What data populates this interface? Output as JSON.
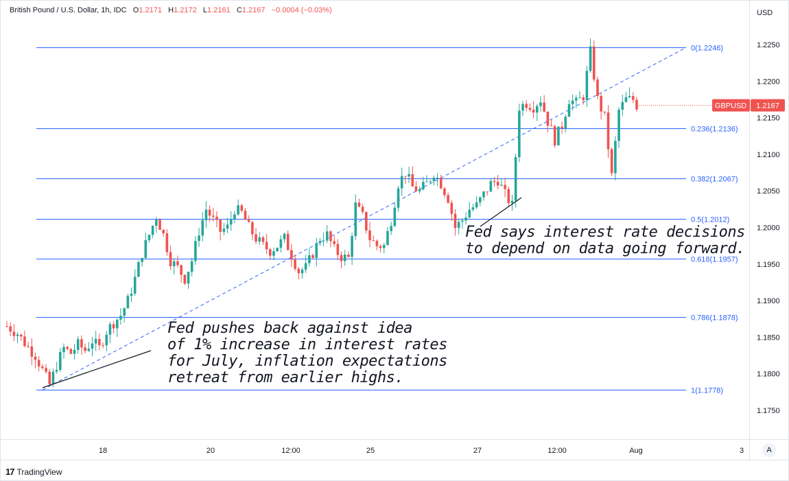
{
  "header": {
    "symbol": "British Pound / U.S. Dollar, 1h, IDC",
    "open_label": "O",
    "open": "1.2171",
    "high_label": "H",
    "high": "1.2172",
    "low_label": "L",
    "low": "1.2161",
    "close_label": "C",
    "close": "1.2167",
    "change": "−0.0004 (−0.03%)"
  },
  "axis": {
    "currency": "USD"
  },
  "last_price": {
    "ticker": "GBPUSD",
    "value": "1.2167"
  },
  "footer": {
    "brand": "TradingView",
    "scale_button": "A"
  },
  "colors": {
    "up": "#26a69a",
    "down": "#ef5350",
    "fib": "#2962ff",
    "fib_text": "#2962ff"
  },
  "annotations": [
    {
      "lines": [
        "Fed pushes back against idea",
        "of 1% increase in interest rates",
        "for July, inflation expectations",
        "retreat from earlier highs."
      ]
    },
    {
      "lines": [
        "Fed says interest rate decisions",
        "to depend on data going forward."
      ]
    }
  ],
  "chart_data": {
    "type": "candlestick",
    "title": "British Pound / U.S. Dollar, 1h, IDC",
    "ylim": [
      1.171,
      1.2305
    ],
    "y_ticks": [
      1.175,
      1.18,
      1.185,
      1.19,
      1.195,
      1.2,
      1.205,
      1.21,
      1.215,
      1.22,
      1.225
    ],
    "x_ticks": [
      "18",
      "20",
      "12:00",
      "25",
      "27",
      "12:00",
      "Aug",
      "3"
    ],
    "fibonacci": [
      {
        "label": "0(1.2246)",
        "level": 1.2246
      },
      {
        "label": "0.236(1.2136)",
        "level": 1.2136
      },
      {
        "label": "0.382(1.2067)",
        "level": 1.2067
      },
      {
        "label": "0.5(1.2012)",
        "level": 1.2012
      },
      {
        "label": "0.618(1.1957)",
        "level": 1.1957
      },
      {
        "label": "0.786(1.1878)",
        "level": 1.1878
      },
      {
        "label": "1(1.1778)",
        "level": 1.1778
      }
    ],
    "trend_line": {
      "from": 1.1778,
      "to": 1.2246
    },
    "price_path": [
      [
        0,
        1.1865
      ],
      [
        3,
        1.1855
      ],
      [
        5,
        1.1842
      ],
      [
        8,
        1.1825
      ],
      [
        10,
        1.1805
      ],
      [
        12,
        1.1785
      ],
      [
        14,
        1.1812
      ],
      [
        16,
        1.1835
      ],
      [
        18,
        1.1828
      ],
      [
        20,
        1.184
      ],
      [
        22,
        1.1832
      ],
      [
        24,
        1.1845
      ],
      [
        26,
        1.1835
      ],
      [
        28,
        1.1858
      ],
      [
        30,
        1.187
      ],
      [
        32,
        1.188
      ],
      [
        34,
        1.19
      ],
      [
        36,
        1.193
      ],
      [
        38,
        1.1965
      ],
      [
        40,
        1.199
      ],
      [
        42,
        1.2015
      ],
      [
        44,
        1.199
      ],
      [
        46,
        1.1955
      ],
      [
        48,
        1.1945
      ],
      [
        50,
        1.193
      ],
      [
        52,
        1.1955
      ],
      [
        54,
        1.1995
      ],
      [
        56,
        1.2025
      ],
      [
        58,
        1.201
      ],
      [
        60,
        1.1995
      ],
      [
        62,
        1.2
      ],
      [
        64,
        1.2025
      ],
      [
        66,
        1.202
      ],
      [
        68,
        1.2
      ],
      [
        70,
        1.1985
      ],
      [
        72,
        1.1975
      ],
      [
        74,
        1.1968
      ],
      [
        76,
        1.1975
      ],
      [
        78,
        1.1985
      ],
      [
        80,
        1.1962
      ],
      [
        82,
        1.194
      ],
      [
        84,
        1.1945
      ],
      [
        86,
        1.1965
      ],
      [
        88,
        1.1985
      ],
      [
        90,
        1.199
      ],
      [
        92,
        1.197
      ],
      [
        94,
        1.196
      ],
      [
        96,
        1.1958
      ],
      [
        98,
        1.203
      ],
      [
        100,
        1.2015
      ],
      [
        102,
        1.1985
      ],
      [
        104,
        1.1975
      ],
      [
        106,
        1.1975
      ],
      [
        108,
        1.201
      ],
      [
        110,
        1.206
      ],
      [
        112,
        1.2075
      ],
      [
        114,
        1.2055
      ],
      [
        116,
        1.205
      ],
      [
        118,
        1.206
      ],
      [
        120,
        1.2075
      ],
      [
        122,
        1.206
      ],
      [
        124,
        1.204
      ],
      [
        126,
        1.2
      ],
      [
        128,
        1.201
      ],
      [
        130,
        1.2025
      ],
      [
        132,
        1.203
      ],
      [
        134,
        1.2045
      ],
      [
        136,
        1.206
      ],
      [
        138,
        1.2065
      ],
      [
        140,
        1.2045
      ],
      [
        142,
        1.203
      ],
      [
        144,
        1.2165
      ],
      [
        146,
        1.217
      ],
      [
        148,
        1.2165
      ],
      [
        150,
        1.2175
      ],
      [
        152,
        1.2145
      ],
      [
        154,
        1.212
      ],
      [
        156,
        1.214
      ],
      [
        158,
        1.2175
      ],
      [
        160,
        1.217
      ],
      [
        162,
        1.218
      ],
      [
        164,
        1.224
      ],
      [
        166,
        1.2175
      ],
      [
        168,
        1.215
      ],
      [
        170,
        1.207
      ],
      [
        172,
        1.216
      ],
      [
        174,
        1.2175
      ],
      [
        176,
        1.2175
      ],
      [
        177,
        1.2167
      ]
    ]
  }
}
